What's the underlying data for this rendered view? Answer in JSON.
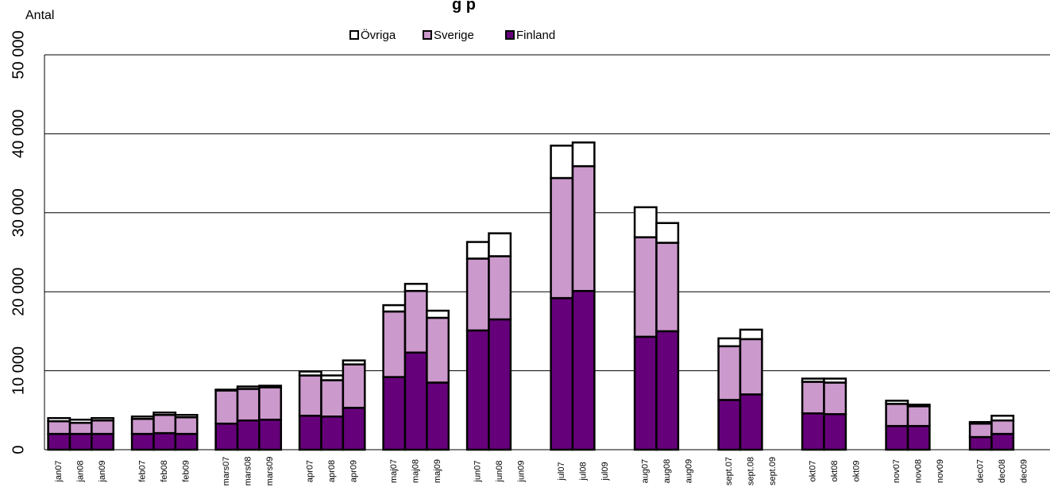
{
  "chart_data": {
    "type": "bar",
    "stacked": true,
    "title": "",
    "title_visible_fragment": "g p",
    "ylabel": "Antal",
    "xlabel": "",
    "ylim": [
      0,
      50000
    ],
    "yticks": [
      0,
      10000,
      20000,
      30000,
      40000,
      50000
    ],
    "ytick_labels": [
      "0",
      "10 000",
      "20 000",
      "30 000",
      "40 000",
      "50 000"
    ],
    "grid": true,
    "legend_position": "top-center",
    "categories": [
      "jan07",
      "jan08",
      "jan09",
      "feb07",
      "feb08",
      "feb09",
      "mars07",
      "mars08",
      "mars09",
      "apr07",
      "apr08",
      "apr09",
      "maj07",
      "maj08",
      "maj09",
      "jun07",
      "jun08",
      "jun09",
      "jul07",
      "jul08",
      "jul09",
      "aug07",
      "aug08",
      "aug09",
      "sept.07",
      "sept.08",
      "sept.09",
      "okt07",
      "okt08",
      "okt09",
      "nov07",
      "nov08",
      "nov09",
      "dec07",
      "dec08",
      "dec09"
    ],
    "series": [
      {
        "name": "Finland",
        "color": "#66007a",
        "values": [
          2000,
          2000,
          2000,
          2000,
          2100,
          2000,
          3300,
          3700,
          3800,
          4300,
          4200,
          5300,
          9200,
          12300,
          8500,
          15100,
          16500,
          0,
          19200,
          20100,
          0,
          14300,
          15000,
          0,
          6300,
          7000,
          0,
          4600,
          4500,
          0,
          3000,
          3000,
          0,
          1600,
          2000,
          0
        ]
      },
      {
        "name": "Sverige",
        "color": "#cc99cc",
        "values": [
          1600,
          1400,
          1700,
          1900,
          2300,
          2100,
          4200,
          4000,
          4100,
          5100,
          4600,
          5500,
          8300,
          7800,
          8200,
          9100,
          8000,
          0,
          15200,
          15800,
          0,
          12600,
          11200,
          0,
          6800,
          7000,
          0,
          4000,
          4000,
          0,
          2800,
          2500,
          0,
          1700,
          1700,
          0
        ]
      },
      {
        "name": "Övriga",
        "color": "#ffffff",
        "values": [
          400,
          400,
          300,
          300,
          300,
          300,
          100,
          300,
          200,
          500,
          600,
          500,
          800,
          900,
          900,
          2100,
          2900,
          0,
          4100,
          3000,
          0,
          3800,
          2500,
          0,
          1000,
          1200,
          0,
          400,
          500,
          0,
          400,
          200,
          0,
          200,
          600,
          0
        ]
      }
    ]
  }
}
